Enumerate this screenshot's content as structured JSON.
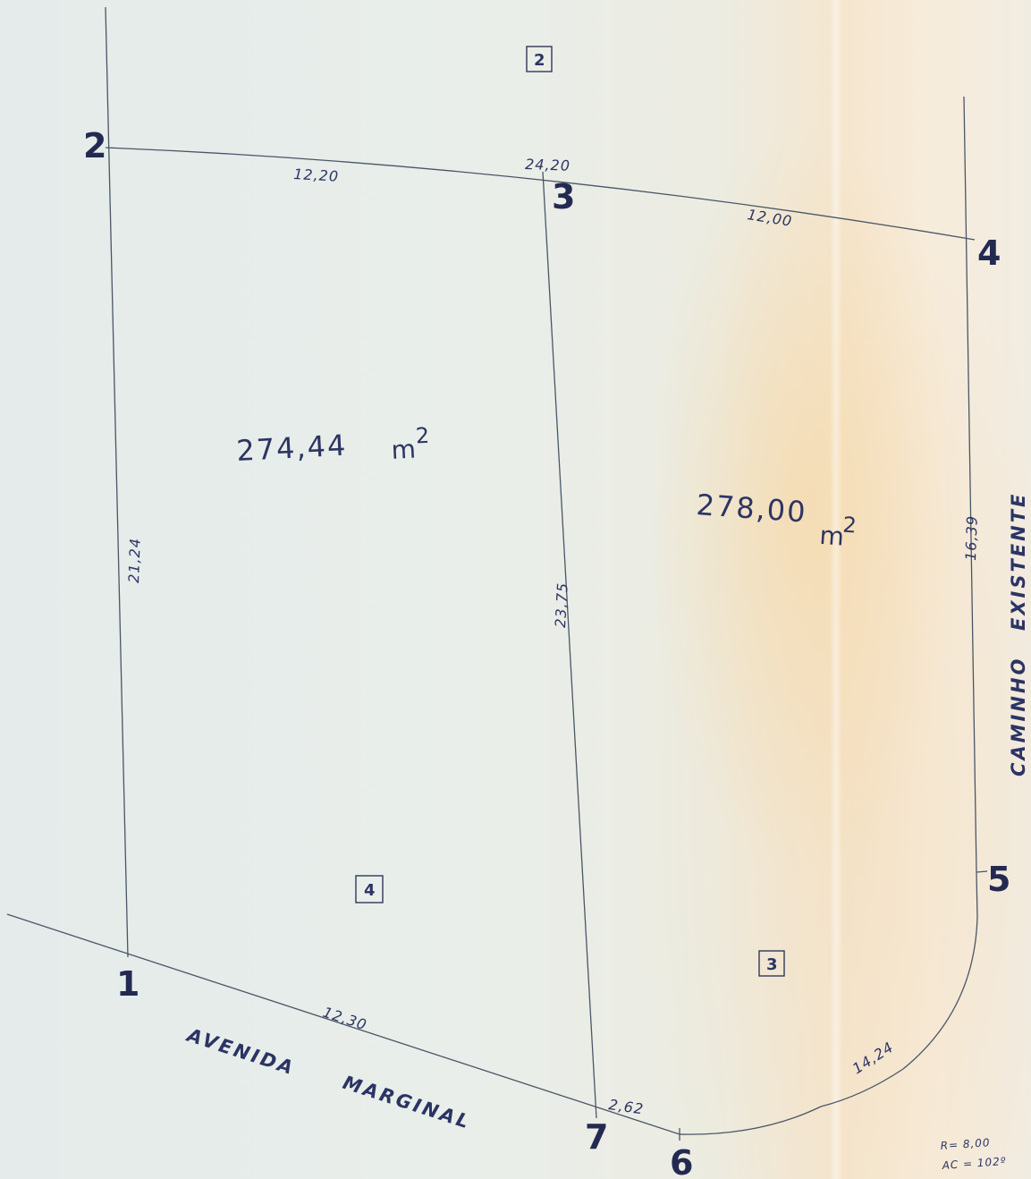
{
  "vertices": [
    "1",
    "2",
    "3",
    "4",
    "5",
    "6",
    "7"
  ],
  "dimensions": {
    "d_2_3a": "12,20",
    "d_total_top": "24,20",
    "d_3_4": "12,00",
    "d_1_2": "21,24",
    "d_3_7": "23,75",
    "d_4_5": "16,39",
    "d_1_7": "12,30",
    "d_7_6": "2,62",
    "d_arc": "14,24"
  },
  "areas": {
    "left": {
      "value": "274,44",
      "unit": "m",
      "exp": "2"
    },
    "right": {
      "value": "278,00",
      "unit": "m",
      "exp": "2"
    }
  },
  "streets": {
    "avenida": "AVENIDA",
    "marginal": "MARGINAL",
    "caminho": "CAMINHO",
    "existente": "EXISTENTE"
  },
  "lots": {
    "top": "2",
    "left": "4",
    "right": "3"
  },
  "curve_note": {
    "radius": "R= 8,00",
    "angle": "AC = 102º"
  }
}
